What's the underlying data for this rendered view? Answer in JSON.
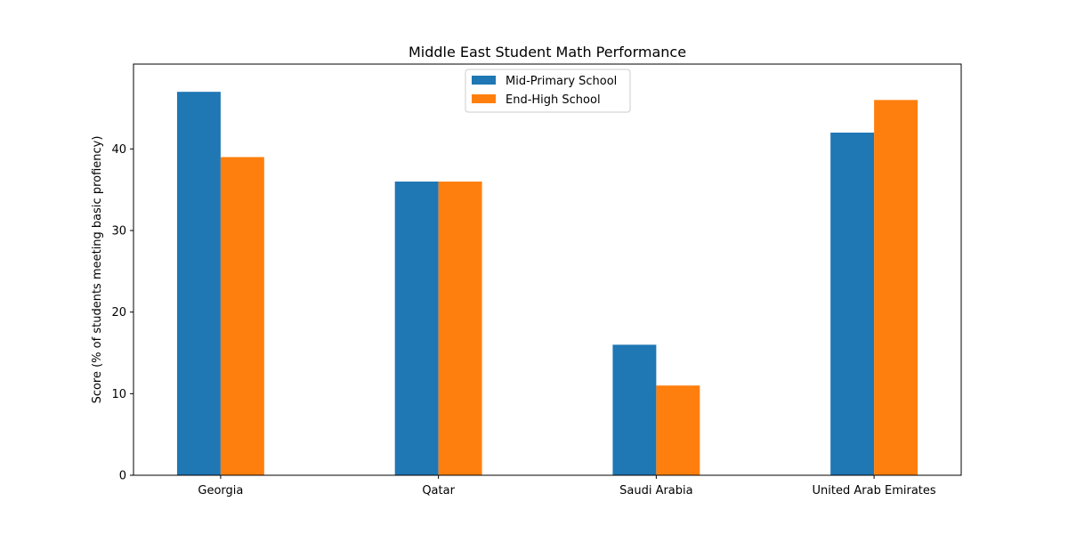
{
  "chart_data": {
    "type": "bar",
    "title": "Middle East Student Math Performance",
    "xlabel": "",
    "ylabel": "Score (% of students meeting basic profiency)",
    "categories": [
      "Georgia",
      "Qatar",
      "Saudi Arabia",
      "United Arab Emirates"
    ],
    "series": [
      {
        "name": "Mid-Primary School",
        "values": [
          47,
          36,
          16,
          42
        ],
        "color": "#1f77b4"
      },
      {
        "name": "End-High School",
        "values": [
          39,
          36,
          11,
          46
        ],
        "color": "#ff7f0e"
      }
    ],
    "ylim": [
      0,
      50.4
    ],
    "yticks": [
      0,
      10,
      20,
      30,
      40
    ],
    "grid": false,
    "legend_position": "upper center"
  }
}
